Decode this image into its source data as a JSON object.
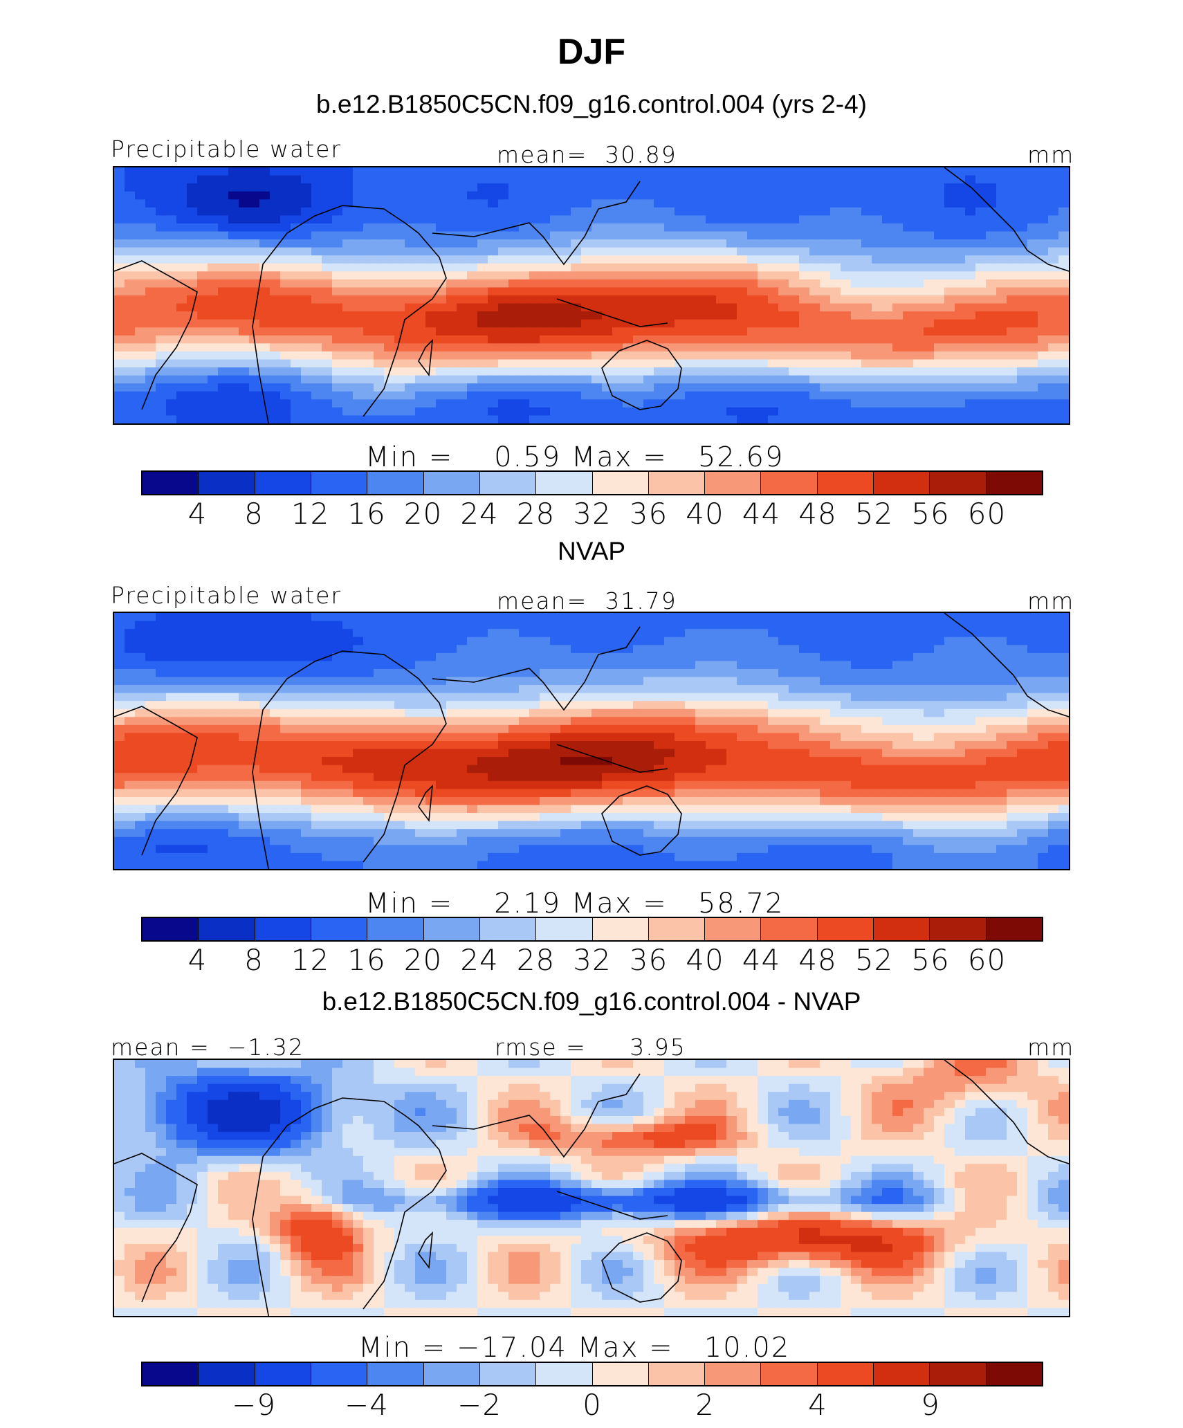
{
  "title": "DJF",
  "palette": [
    "#08088c",
    "#0a2fc4",
    "#1546e6",
    "#2a64f2",
    "#4d86f0",
    "#7aa7f2",
    "#a9c8f6",
    "#d4e5fa",
    "#fde6d6",
    "#fbc4a8",
    "#f79878",
    "#f46a44",
    "#eb4a22",
    "#d12f0f",
    "#a91d09",
    "#7d0a05"
  ],
  "colorbar_ticks_full": [
    "4",
    "8",
    "12",
    "16",
    "20",
    "24",
    "28",
    "32",
    "36",
    "40",
    "44",
    "48",
    "52",
    "56",
    "60"
  ],
  "colorbar_ticks_diff": [
    "−9",
    "−4",
    "−2",
    "0",
    "2",
    "4",
    "9"
  ],
  "panels": [
    {
      "subtitle": "b.e12.B1850C5CN.f09_g16.control.004 (yrs 2-4)",
      "left_label": "Precipitable water",
      "center_label": "mean=  30.89",
      "units": "mm",
      "minmax": "Min =    0.59 Max =   52.69"
    },
    {
      "subtitle": "NVAP",
      "left_label": "Precipitable water",
      "center_label": "mean=  31.79",
      "units": "mm",
      "minmax": "Min =    2.19 Max =   58.72"
    },
    {
      "subtitle": "b.e12.B1850C5CN.f09_g16.control.004 - NVAP",
      "left_label": "mean =  −1.32",
      "center_label": "rmse =     3.95",
      "units": "mm",
      "minmax": "Min = −17.04 Max =   10.02"
    }
  ],
  "chart_data": [
    {
      "type": "heatmap",
      "title": "b.e12.B1850C5CN.f09_g16.control.004 (yrs 2-4)",
      "variable": "Precipitable water",
      "units": "mm",
      "mean": 30.89,
      "min": 0.59,
      "max": 52.69,
      "colorbar_levels": [
        4,
        8,
        12,
        16,
        20,
        24,
        28,
        32,
        36,
        40,
        44,
        48,
        52,
        56,
        60
      ]
    },
    {
      "type": "heatmap",
      "title": "NVAP",
      "variable": "Precipitable water",
      "units": "mm",
      "mean": 31.79,
      "min": 2.19,
      "max": 58.72,
      "colorbar_levels": [
        4,
        8,
        12,
        16,
        20,
        24,
        28,
        32,
        36,
        40,
        44,
        48,
        52,
        56,
        60
      ]
    },
    {
      "type": "heatmap",
      "title": "b.e12.B1850C5CN.f09_g16.control.004 - NVAP",
      "units": "mm",
      "mean": -1.32,
      "rmse": 3.95,
      "min": -17.04,
      "max": 10.02,
      "colorbar_tick_labels": [
        -9,
        -4,
        -2,
        0,
        2,
        4,
        9
      ]
    }
  ]
}
